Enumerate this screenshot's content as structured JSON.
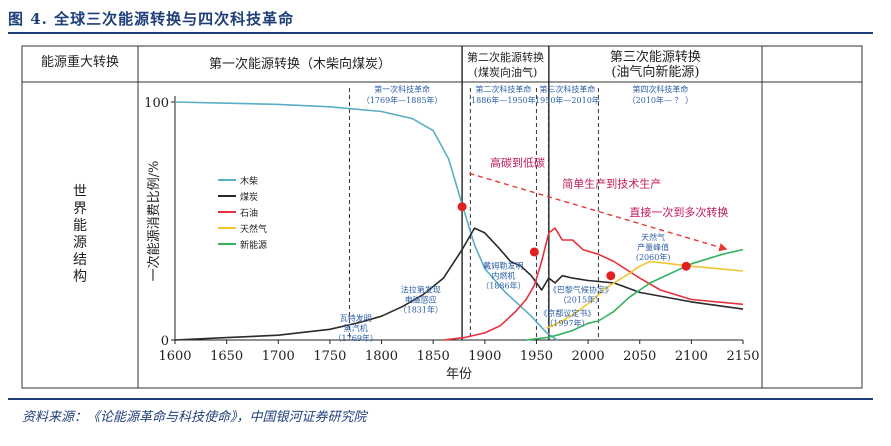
{
  "figure": {
    "title": "图 4. 全球三次能源转换与四次科技革命",
    "source": "资料来源：《论能源革命与科技使命》，中国银河证券研究院"
  },
  "table_header": {
    "row_label": "能源重大转换",
    "side_label": "世界能源结构",
    "eras": [
      {
        "line1": "第一次能源转换（木柴向煤炭）",
        "line2": ""
      },
      {
        "line1": "第二次能源转换",
        "line2": "(煤炭向油气)"
      },
      {
        "line1": "第三次能源转换",
        "line2": "(油气向新能源)"
      }
    ]
  },
  "chart_data": {
    "type": "line",
    "xlabel": "年份",
    "ylabel": "一次能源消费比例/%",
    "xlim": [
      1600,
      2150
    ],
    "ylim": [
      0,
      100
    ],
    "x_ticks": [
      1600,
      1650,
      1700,
      1750,
      1800,
      1850,
      1900,
      1950,
      2000,
      2050,
      2100,
      2150
    ],
    "y_ticks": [
      0,
      100
    ],
    "legend": {
      "position": "left",
      "entries": [
        "木柴",
        "煤炭",
        "石油",
        "天然气",
        "新能源"
      ]
    },
    "colors": {
      "wood": "#5aaec6",
      "coal": "#2a2a2a",
      "oil": "#e8303c",
      "gas": "#f2c431",
      "renewable": "#35b25e",
      "annot": "#2f5fa8",
      "arrow_text": "#c2185b",
      "arrow": "#e53935"
    },
    "series": [
      {
        "name": "木柴",
        "key": "wood",
        "x": [
          1600,
          1650,
          1700,
          1750,
          1800,
          1830,
          1850,
          1865,
          1878,
          1890,
          1900,
          1920,
          1945,
          1960,
          1970
        ],
        "y": [
          100,
          99.5,
          99,
          98,
          96,
          93,
          88,
          76,
          57,
          40,
          30,
          20,
          10,
          3,
          0
        ]
      },
      {
        "name": "煤炭",
        "key": "coal",
        "x": [
          1600,
          1650,
          1700,
          1750,
          1780,
          1800,
          1820,
          1840,
          1860,
          1878,
          1890,
          1900,
          1915,
          1925,
          1935,
          1945,
          1950,
          1955,
          1962,
          1968,
          1975,
          1985,
          2000,
          2025,
          2050,
          2100,
          2150
        ],
        "y": [
          0,
          1,
          2,
          4.5,
          7.5,
          10,
          14,
          19,
          26,
          38,
          47,
          45,
          38,
          33,
          31,
          27,
          24,
          21,
          26,
          24,
          27,
          26,
          25,
          24,
          20,
          16,
          13
        ]
      },
      {
        "name": "石油",
        "key": "oil",
        "x": [
          1860,
          1880,
          1900,
          1915,
          1930,
          1940,
          1948,
          1955,
          1962,
          1968,
          1975,
          1985,
          1995,
          2010,
          2025,
          2050,
          2070,
          2100,
          2150
        ],
        "y": [
          0,
          1,
          3,
          6,
          12,
          17,
          23,
          33,
          45,
          47,
          42,
          42,
          38,
          36,
          33,
          26,
          21,
          17,
          15
        ]
      },
      {
        "name": "天然气",
        "key": "gas",
        "x": [
          1960,
          1975,
          1990,
          2005,
          2015,
          2025,
          2040,
          2050,
          2060,
          2080,
          2100,
          2150
        ],
        "y": [
          5,
          8,
          12,
          17,
          21,
          24,
          28,
          31,
          33,
          32,
          31,
          29
        ]
      },
      {
        "name": "新能源",
        "key": "renewable",
        "x": [
          1940,
          1960,
          1970,
          1985,
          1995,
          2000,
          2010,
          2025,
          2040,
          2060,
          2080,
          2100,
          2130,
          2150
        ],
        "y": [
          0,
          1,
          2,
          4,
          6,
          7,
          8,
          12,
          18,
          24,
          28,
          32,
          36,
          38
        ]
      }
    ],
    "intersection_points": [
      {
        "x": 1878,
        "y": 56
      },
      {
        "x": 1948,
        "y": 37
      },
      {
        "x": 2022,
        "y": 27
      },
      {
        "x": 2095,
        "y": 31
      }
    ],
    "revolution_lines": [
      1769,
      1885,
      1886,
      1950,
      1950,
      2010
    ],
    "transition_lines": [
      1878,
      1962
    ],
    "revolutions": [
      {
        "line1": "第一次科技革命",
        "line2": "（1769年—1885年）",
        "x": 1820
      },
      {
        "line1": "第二次科技革命",
        "line2": "1886年—1950年",
        "x": 1918
      },
      {
        "line1": "第三次科技革命",
        "line2": "1950年—2010年",
        "x": 1980
      },
      {
        "line1": "第四次科技革命",
        "line2": "（2010年— ？ ）",
        "x": 2070
      }
    ],
    "annotations": [
      {
        "lines": [
          "瓦特发明",
          "蒸汽机",
          "（1769年）"
        ],
        "x": 1775,
        "y": 8
      },
      {
        "lines": [
          "法拉第发现",
          "电磁感应",
          "（1831年）"
        ],
        "x": 1838,
        "y": 20
      },
      {
        "lines": [
          "戴姆勒发明",
          "内燃机",
          "（1886年）"
        ],
        "x": 1918,
        "y": 30
      },
      {
        "lines": [
          "《巴黎气候协定》",
          "（2015年）"
        ],
        "x": 1993,
        "y": 20
      },
      {
        "lines": [
          "《京都议定书》",
          "（1997年）"
        ],
        "x": 1980,
        "y": 10
      },
      {
        "lines": [
          "天然气",
          "产量峰值",
          "(2060年)"
        ],
        "x": 2063,
        "y": 42
      }
    ],
    "arrow_labels": [
      "高碳到低碳",
      "简单生产到技术生产",
      "直接一次到多次转换"
    ]
  }
}
